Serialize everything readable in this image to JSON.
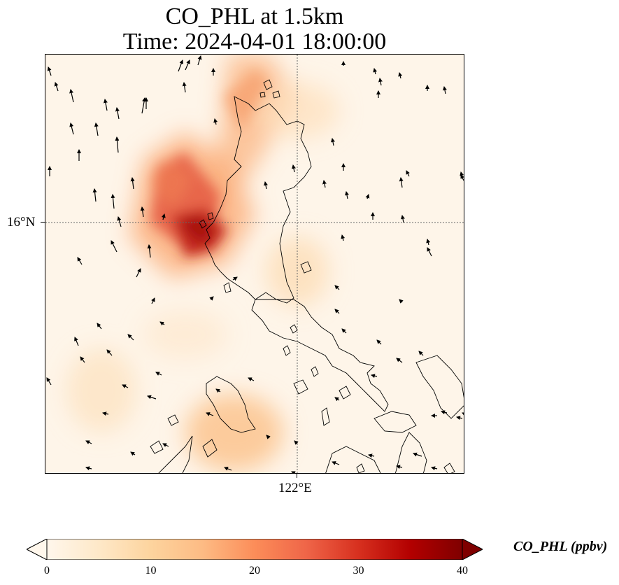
{
  "title": {
    "line1": "CO_PHL at 1.5km",
    "line2": "Time: 2024-04-01 18:00:00"
  },
  "map": {
    "latitude_tick": "16°N",
    "longitude_tick": "122°E",
    "gridlines": true,
    "coastlines": true,
    "wind_vectors": true
  },
  "colorbar": {
    "title": "CO_PHL (ppbv)",
    "ticks": [
      "0",
      "10",
      "20",
      "30",
      "40"
    ],
    "colormap": "OrRd",
    "colors": [
      "#fff7ec",
      "#fee8c8",
      "#fdd49e",
      "#fdbb84",
      "#fc8d59",
      "#ef6548",
      "#d7301f",
      "#b30000",
      "#7f0000"
    ],
    "min": 0,
    "max": 40,
    "extend": "both"
  }
}
